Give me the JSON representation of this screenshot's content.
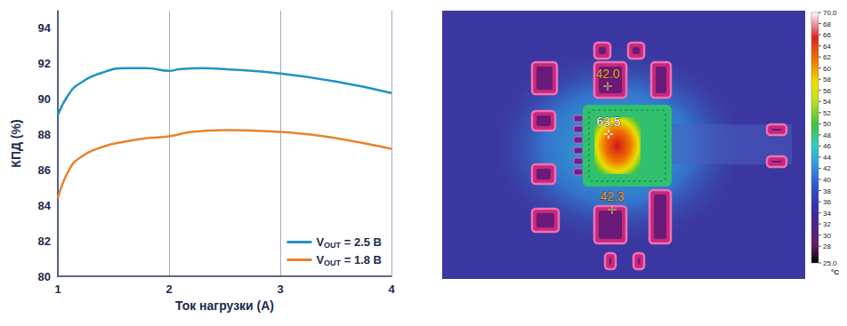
{
  "chart_data": [
    {
      "type": "line",
      "x_label": "Ток нагрузки (А)",
      "y_label": "КПД (%)",
      "xlim": [
        1,
        4
      ],
      "xticks": [
        1,
        2,
        3,
        4
      ],
      "ylim": [
        80,
        95
      ],
      "yticks": [
        80,
        82,
        84,
        86,
        88,
        90,
        92,
        94
      ],
      "grid": "x",
      "legend": "lower right",
      "series": [
        {
          "name": "VOUT = 2.5 В",
          "color": "#1f93c6",
          "x": [
            1.0,
            1.1,
            1.2,
            1.4,
            1.6,
            1.8,
            2.0,
            2.1,
            2.3,
            2.5,
            3.0,
            3.5,
            4.0
          ],
          "values": [
            89.1,
            90.3,
            90.9,
            91.5,
            91.75,
            91.75,
            91.6,
            91.7,
            91.75,
            91.7,
            91.45,
            91.0,
            90.35
          ]
        },
        {
          "name": "VOUT = 1.8 В",
          "color": "#e8832a",
          "x": [
            1.0,
            1.1,
            1.2,
            1.4,
            1.6,
            1.8,
            2.0,
            2.2,
            2.5,
            3.0,
            3.2,
            3.5,
            4.0
          ],
          "values": [
            84.4,
            86.0,
            86.7,
            87.3,
            87.6,
            87.8,
            87.9,
            88.15,
            88.25,
            88.15,
            88.05,
            87.8,
            87.2
          ]
        }
      ]
    },
    {
      "type": "thermal_image",
      "annotations": [
        {
          "value": 42,
          "label": "42.0"
        },
        63.5,
        42.3
      ],
      "colorbar": {
        "range": [
          25,
          70
        ],
        "ticks": [
          {
            "value": 25,
            "label": "25.0"
          },
          28,
          30,
          32,
          34,
          36,
          38,
          40,
          42,
          44,
          46,
          48,
          50,
          52,
          54,
          56,
          58,
          60,
          62,
          64,
          66,
          68,
          {
            "value": 70,
            "label": "70.0"
          }
        ],
        "unit": "°C"
      }
    }
  ]
}
